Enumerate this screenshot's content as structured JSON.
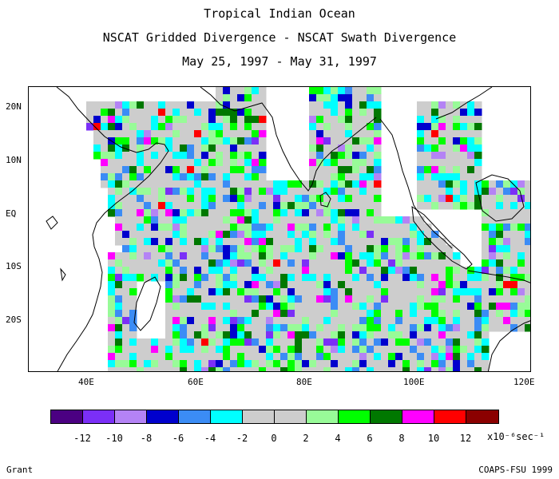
{
  "titles": {
    "line1": "Tropical Indian Ocean",
    "line2": "NSCAT Gridded Divergence - NSCAT Swath Divergence",
    "line3": "May 25, 1997 - May 31, 1997"
  },
  "map": {
    "lat_labels": [
      "20N",
      "10N",
      "EQ",
      "10S",
      "20S"
    ],
    "lon_labels": [
      "40E",
      "60E",
      "80E",
      "100E",
      "120E"
    ],
    "lon_range": [
      30,
      122
    ],
    "lat_range": [
      -30,
      25
    ]
  },
  "colorbar": {
    "colors": [
      "#4b0082",
      "#7b2ff7",
      "#b483f5",
      "#0000cd",
      "#3b8cf5",
      "#00ffff",
      "#cdcdcd",
      "#cdcdcd",
      "#98fb98",
      "#00ff00",
      "#007800",
      "#ff00ff",
      "#ff0000",
      "#8b0000"
    ],
    "ticks": [
      "-12",
      "-10",
      "-8",
      "-6",
      "-4",
      "-2",
      "0",
      "2",
      "4",
      "6",
      "8",
      "10",
      "12"
    ],
    "units": "x10⁻⁶sec⁻¹"
  },
  "footer": {
    "left": "Grant",
    "right": "COAPS-FSU 1999"
  }
}
